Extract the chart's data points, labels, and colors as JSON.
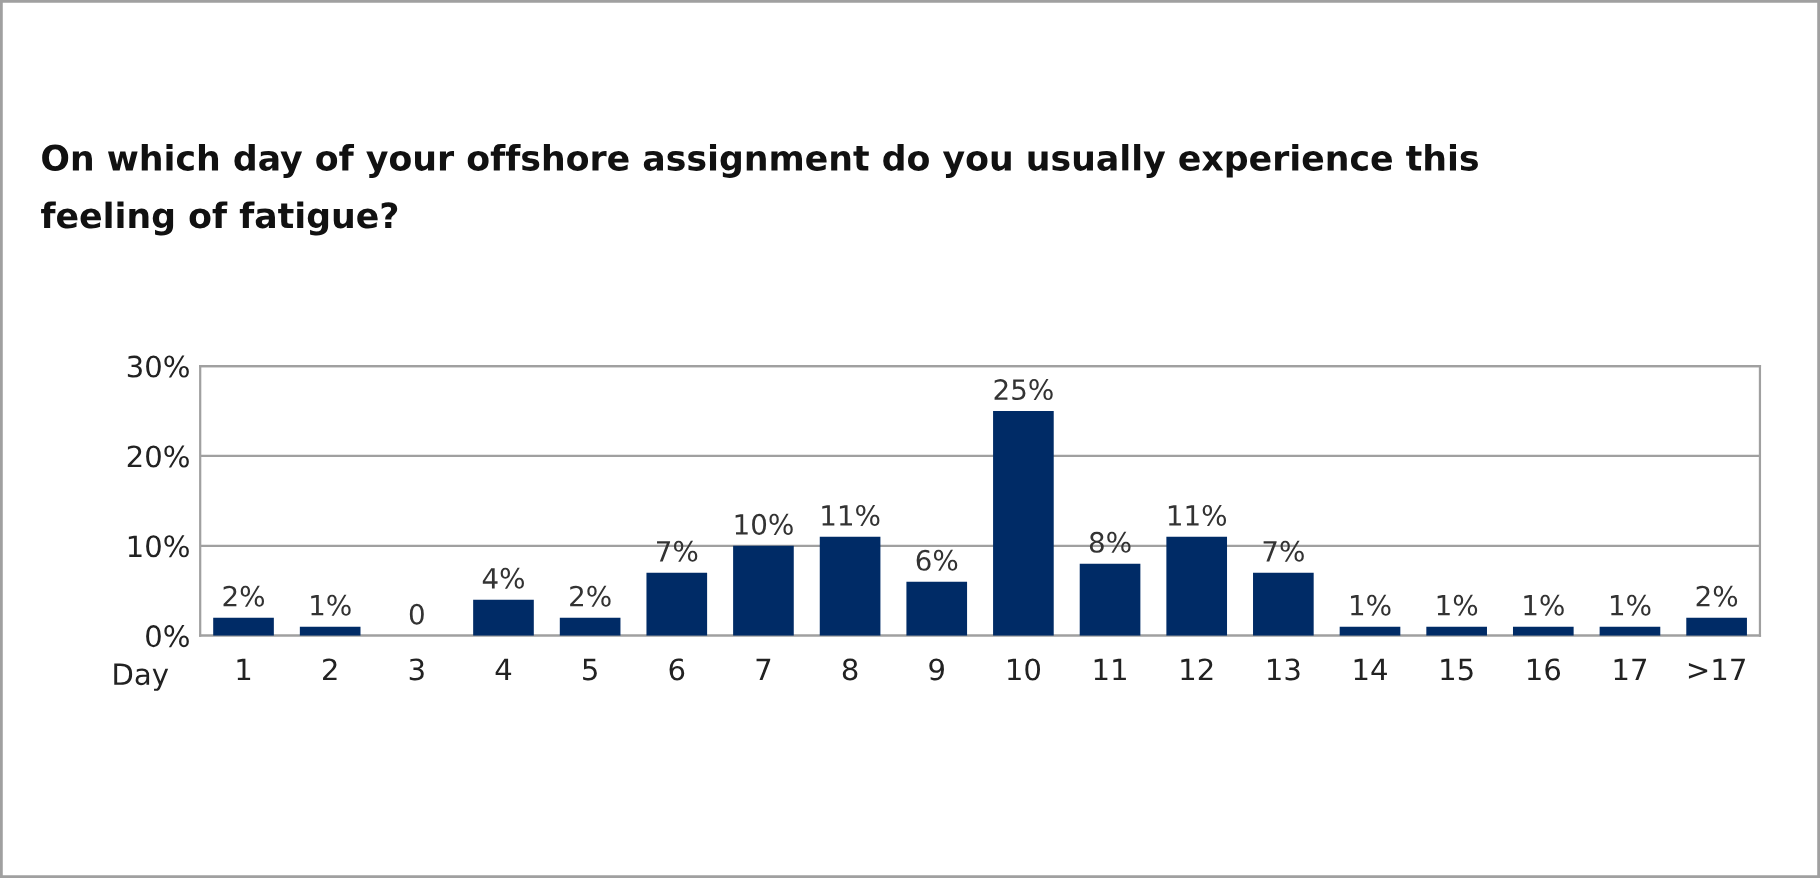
{
  "chart_data": {
    "type": "bar",
    "title": "On which day of your offshore assignment do you usually experience this feeling of fatigue?",
    "xlabel": "Day",
    "categories": [
      "1",
      "2",
      "3",
      "4",
      "5",
      "6",
      "7",
      "8",
      "9",
      "10",
      "11",
      "12",
      "13",
      "14",
      "15",
      "16",
      "17",
      ">17"
    ],
    "values": [
      2,
      1,
      0,
      4,
      2,
      7,
      10,
      11,
      6,
      25,
      8,
      11,
      7,
      1,
      1,
      1,
      1,
      2
    ],
    "value_labels": [
      "2%",
      "1%",
      "0",
      "4%",
      "2%",
      "7%",
      "10%",
      "11%",
      "6%",
      "25%",
      "8%",
      "11%",
      "7%",
      "1%",
      "1%",
      "1%",
      "1%",
      "2%"
    ],
    "color": "#002b66",
    "ylim": [
      0,
      30
    ],
    "yticks": [
      {
        "value": 0,
        "label": "0%"
      },
      {
        "value": 10,
        "label": "10%"
      },
      {
        "value": 20,
        "label": "20%"
      },
      {
        "value": 30,
        "label": "30%"
      }
    ],
    "grid": "y"
  }
}
